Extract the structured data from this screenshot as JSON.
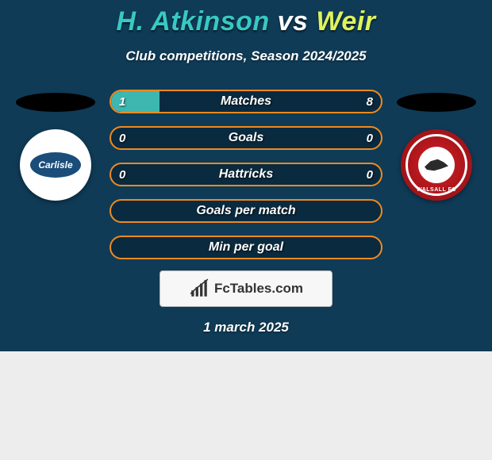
{
  "colors": {
    "card_bg": "#0f3b57",
    "p1_title": "#38c9c2",
    "vs": "#ffffff",
    "p2_title": "#dff35c",
    "bar_border": "#f08a1e",
    "bar_bg": "#0a2a3f",
    "left_fill": "#3fb7b1"
  },
  "header": {
    "p1_name": "H. Atkinson",
    "vs": "vs",
    "p2_name": "Weir",
    "subtitle": "Club competitions, Season 2024/2025"
  },
  "clubs": {
    "left_name": "Carlisle",
    "right_name": "WALSALL FC"
  },
  "bars": [
    {
      "label": "Matches",
      "left_val": "1",
      "right_val": "8",
      "left_pct": 18,
      "right_pct": 0
    },
    {
      "label": "Goals",
      "left_val": "0",
      "right_val": "0",
      "left_pct": 0,
      "right_pct": 0
    },
    {
      "label": "Hattricks",
      "left_val": "0",
      "right_val": "0",
      "left_pct": 0,
      "right_pct": 0
    },
    {
      "label": "Goals per match",
      "left_val": "",
      "right_val": "",
      "left_pct": 0,
      "right_pct": 0
    },
    {
      "label": "Min per goal",
      "left_val": "",
      "right_val": "",
      "left_pct": 0,
      "right_pct": 0
    }
  ],
  "watermark": {
    "text": "FcTables.com"
  },
  "footer": {
    "date": "1 march 2025"
  }
}
